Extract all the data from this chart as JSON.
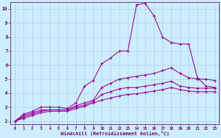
{
  "xlabel": "Windchill (Refroidissement éolien,°C)",
  "bg_color": "#cceeff",
  "grid_color": "#aaccdd",
  "line_color": "#990099",
  "line_width": 0.8,
  "marker": "+",
  "markersize": 3,
  "markeredgewidth": 0.8,
  "xlim": [
    -0.5,
    23.5
  ],
  "ylim": [
    1.8,
    10.5
  ],
  "xticks": [
    0,
    1,
    2,
    3,
    4,
    5,
    6,
    7,
    8,
    9,
    10,
    11,
    12,
    13,
    14,
    15,
    16,
    17,
    18,
    19,
    20,
    21,
    22,
    23
  ],
  "yticks": [
    2,
    3,
    4,
    5,
    6,
    7,
    8,
    9,
    10
  ],
  "series": [
    [
      2.0,
      2.5,
      2.7,
      3.0,
      3.0,
      3.0,
      2.9,
      3.3,
      4.5,
      4.9,
      6.1,
      6.5,
      7.0,
      7.0,
      10.3,
      10.4,
      9.5,
      8.0,
      7.6,
      7.5,
      7.5,
      5.1,
      4.5,
      4.4
    ],
    [
      2.0,
      2.4,
      2.6,
      2.8,
      2.8,
      2.8,
      2.8,
      3.1,
      3.3,
      3.5,
      4.4,
      4.7,
      5.0,
      5.1,
      5.2,
      5.3,
      5.4,
      5.6,
      5.8,
      5.4,
      5.1,
      5.0,
      5.0,
      4.9
    ],
    [
      2.0,
      2.3,
      2.5,
      2.7,
      2.8,
      2.8,
      2.8,
      3.0,
      3.15,
      3.4,
      3.9,
      4.1,
      4.3,
      4.4,
      4.4,
      4.5,
      4.6,
      4.7,
      4.85,
      4.5,
      4.4,
      4.35,
      4.35,
      4.35
    ],
    [
      2.0,
      2.2,
      2.4,
      2.6,
      2.7,
      2.7,
      2.7,
      2.9,
      3.05,
      3.3,
      3.5,
      3.65,
      3.8,
      3.9,
      3.95,
      4.05,
      4.15,
      4.25,
      4.4,
      4.25,
      4.15,
      4.1,
      4.1,
      4.1
    ]
  ],
  "figsize": [
    3.2,
    2.0
  ],
  "dpi": 100
}
